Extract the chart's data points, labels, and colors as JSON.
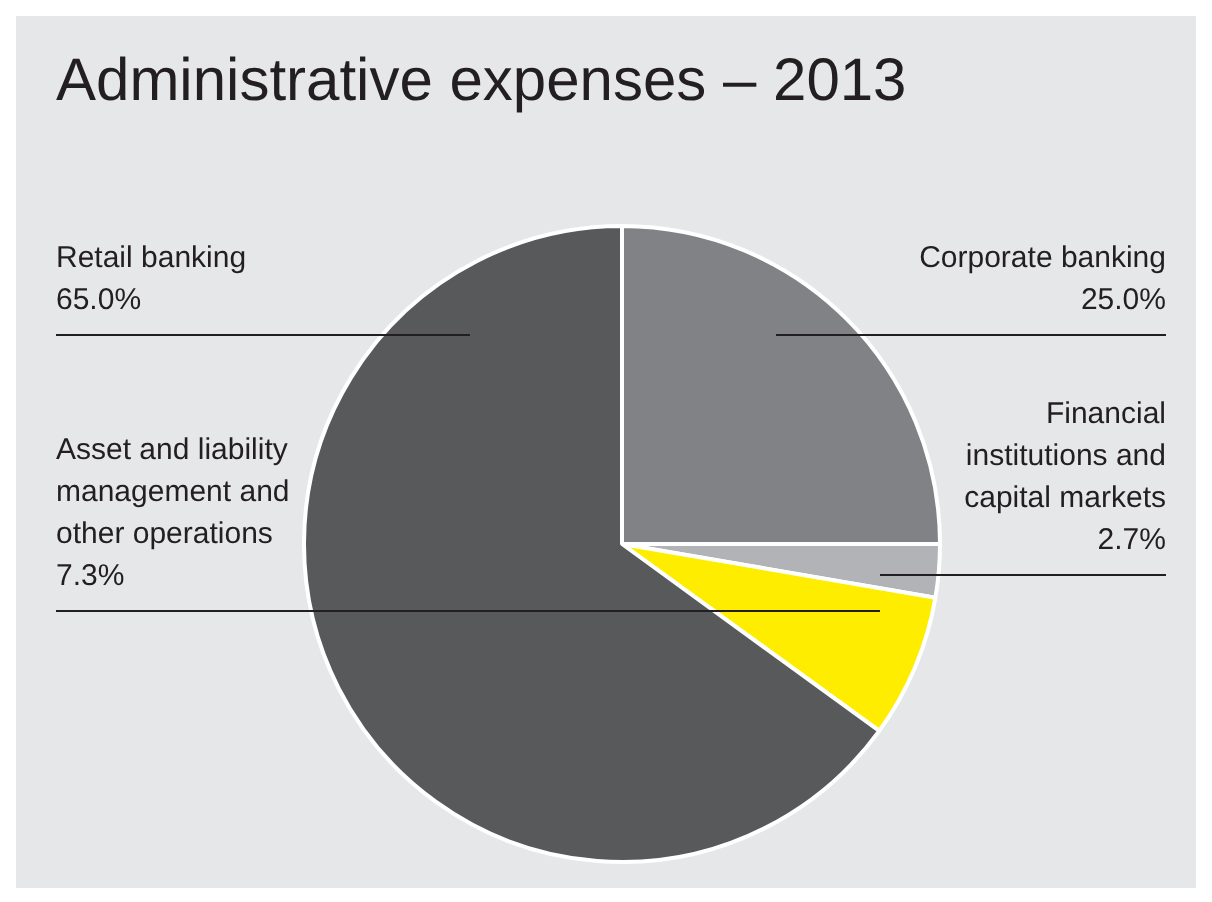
{
  "chart_data": {
    "type": "pie",
    "title": "Administrative expenses – 2013",
    "categories": [
      "Corporate banking",
      "Financial institutions and capital markets",
      "Asset and liability management and other operations",
      "Retail banking"
    ],
    "values": [
      25.0,
      2.7,
      7.3,
      65.0
    ],
    "value_labels": [
      "25.0%",
      "2.7%",
      "7.3%",
      "65.0%"
    ],
    "colors": [
      "#808285",
      "#b1b3b6",
      "#ffed00",
      "#58595b"
    ],
    "legend": false
  }
}
